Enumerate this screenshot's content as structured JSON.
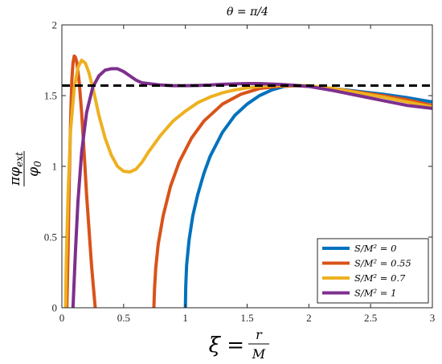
{
  "chart_data": {
    "type": "line",
    "title": "θ = π/4",
    "xlabel": {
      "main": "ξ =",
      "num": "r",
      "den": "M"
    },
    "ylabel": {
      "num": "πφ",
      "sub": "ext",
      "den": "φ",
      "den_sub": "0"
    },
    "xlim": [
      0,
      3
    ],
    "ylim": [
      0,
      2
    ],
    "xticks": [
      0,
      0.5,
      1,
      1.5,
      2,
      2.5,
      3
    ],
    "xtick_labels": [
      "0",
      "0.5",
      "1",
      "1.5",
      "2",
      "2.5",
      "3"
    ],
    "yticks": [
      0,
      0.5,
      1,
      1.5,
      2
    ],
    "ytick_labels": [
      "0",
      "0.5",
      "1",
      "1.5",
      "2"
    ],
    "grid": false,
    "legend_position": "bottom-right",
    "reference_line": {
      "y": 1.5708,
      "style": "dashed",
      "color": "#000000"
    },
    "series": [
      {
        "name": "S/M² = 0",
        "color": "#0072BD",
        "x": [
          1.0,
          1.003,
          1.01,
          1.03,
          1.06,
          1.1,
          1.15,
          1.2,
          1.3,
          1.4,
          1.5,
          1.6,
          1.7,
          1.8,
          1.9,
          2.0,
          2.2,
          2.4,
          2.6,
          2.8,
          3.0
        ],
        "y": [
          0.0,
          0.15,
          0.3,
          0.48,
          0.65,
          0.8,
          0.95,
          1.07,
          1.24,
          1.36,
          1.44,
          1.5,
          1.54,
          1.565,
          1.57,
          1.565,
          1.55,
          1.53,
          1.51,
          1.485,
          1.455
        ]
      },
      {
        "name": "S/M² = 0.55",
        "color": "#D95319",
        "x": [
          0.04,
          0.05,
          0.06,
          0.07,
          0.08,
          0.09,
          0.1,
          0.11,
          0.12,
          0.14,
          0.16,
          0.18,
          0.2,
          0.22,
          0.24,
          0.26,
          0.27
        ],
        "y": [
          0.0,
          0.4,
          0.9,
          1.3,
          1.6,
          1.73,
          1.78,
          1.77,
          1.74,
          1.6,
          1.38,
          1.1,
          0.8,
          0.55,
          0.3,
          0.1,
          0.0
        ]
      },
      {
        "name": "S/M² = 0.55",
        "color": "#D95319",
        "x": [
          0.745,
          0.75,
          0.76,
          0.78,
          0.82,
          0.88,
          0.95,
          1.05,
          1.15,
          1.3,
          1.45,
          1.6,
          1.75,
          1.9,
          2.0,
          2.2,
          2.4,
          2.6,
          2.8,
          3.0
        ],
        "y": [
          0.0,
          0.13,
          0.28,
          0.45,
          0.65,
          0.86,
          1.03,
          1.2,
          1.32,
          1.44,
          1.51,
          1.55,
          1.565,
          1.57,
          1.565,
          1.55,
          1.525,
          1.5,
          1.47,
          1.43
        ]
      },
      {
        "name": "S/M² = 0.7",
        "color": "#EDB120",
        "x": [
          0.03,
          0.035,
          0.05,
          0.07,
          0.1,
          0.13,
          0.16,
          0.19,
          0.22,
          0.26,
          0.3,
          0.35,
          0.4,
          0.45,
          0.5,
          0.55,
          0.6,
          0.65,
          0.7,
          0.8,
          0.9,
          1.0,
          1.1,
          1.2,
          1.3,
          1.4,
          1.5,
          1.6,
          1.7,
          1.8,
          1.9,
          2.0,
          2.2,
          2.4,
          2.6,
          2.8,
          3.0
        ],
        "y": [
          0.0,
          0.3,
          0.8,
          1.25,
          1.55,
          1.7,
          1.75,
          1.73,
          1.66,
          1.52,
          1.36,
          1.2,
          1.08,
          1.0,
          0.965,
          0.96,
          0.98,
          1.03,
          1.1,
          1.22,
          1.32,
          1.39,
          1.45,
          1.49,
          1.52,
          1.54,
          1.555,
          1.565,
          1.57,
          1.572,
          1.572,
          1.57,
          1.55,
          1.52,
          1.49,
          1.455,
          1.42
        ]
      },
      {
        "name": "S/M² = 1",
        "color": "#7E2F8E",
        "x": [
          0.09,
          0.095,
          0.11,
          0.13,
          0.16,
          0.2,
          0.25,
          0.3,
          0.35,
          0.4,
          0.45,
          0.5,
          0.55,
          0.6,
          0.65,
          0.7,
          0.8,
          0.9,
          1.0,
          1.1,
          1.2,
          1.3,
          1.4,
          1.5,
          1.6,
          1.7,
          1.8,
          1.9,
          2.0,
          2.2,
          2.4,
          2.6,
          2.8,
          3.0
        ],
        "y": [
          0.0,
          0.1,
          0.4,
          0.75,
          1.1,
          1.38,
          1.56,
          1.64,
          1.68,
          1.69,
          1.69,
          1.67,
          1.64,
          1.61,
          1.59,
          1.585,
          1.575,
          1.57,
          1.57,
          1.572,
          1.575,
          1.58,
          1.583,
          1.585,
          1.585,
          1.582,
          1.578,
          1.572,
          1.565,
          1.535,
          1.5,
          1.465,
          1.43,
          1.41
        ]
      }
    ],
    "legend": [
      {
        "label": "S/M² = 0",
        "color": "#0072BD"
      },
      {
        "label": "S/M² = 0.55",
        "color": "#D95319"
      },
      {
        "label": "S/M² = 0.7",
        "color": "#EDB120"
      },
      {
        "label": "S/M² = 1",
        "color": "#7E2F8E"
      }
    ]
  }
}
